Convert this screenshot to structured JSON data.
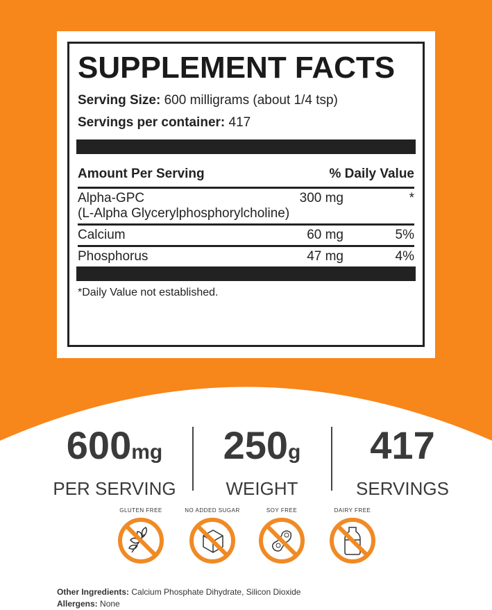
{
  "colors": {
    "accent": "#f7861b",
    "text": "#222222"
  },
  "facts": {
    "title": "SUPPLEMENT FACTS",
    "serving_size_label": "Serving Size:",
    "serving_size_value": "600 milligrams (about 1/4 tsp)",
    "servings_label": "Servings per container:",
    "servings_value": "417",
    "col_amount": "Amount Per Serving",
    "col_dv": "% Daily Value",
    "rows": [
      {
        "name": "Alpha-GPC",
        "sub": "(L-Alpha Glycerylphosphorylcholine)",
        "amount": "300 mg",
        "dv": "*"
      },
      {
        "name": "Calcium",
        "amount": "60 mg",
        "dv": "5%"
      },
      {
        "name": "Phosphorus",
        "amount": "47 mg",
        "dv": "4%"
      }
    ],
    "footnote": "*Daily Value not established."
  },
  "stats": [
    {
      "num": "600",
      "unit": "mg",
      "label": "PER SERVING"
    },
    {
      "num": "250",
      "unit": "g",
      "label": "WEIGHT"
    },
    {
      "num": "417",
      "unit": "",
      "label": "SERVINGS"
    }
  ],
  "badges": [
    {
      "label": "GLUTEN FREE",
      "icon": "wheat-icon"
    },
    {
      "label": "NO ADDED SUGAR",
      "icon": "sugar-cube-icon"
    },
    {
      "label": "SOY FREE",
      "icon": "soybean-icon"
    },
    {
      "label": "DAIRY FREE",
      "icon": "milk-bottle-icon"
    }
  ],
  "footer": {
    "ingredients_label": "Other Ingredients:",
    "ingredients_value": "Calcium Phosphate Dihydrate, Silicon Dioxide",
    "allergens_label": "Allergens:",
    "allergens_value": "None"
  }
}
